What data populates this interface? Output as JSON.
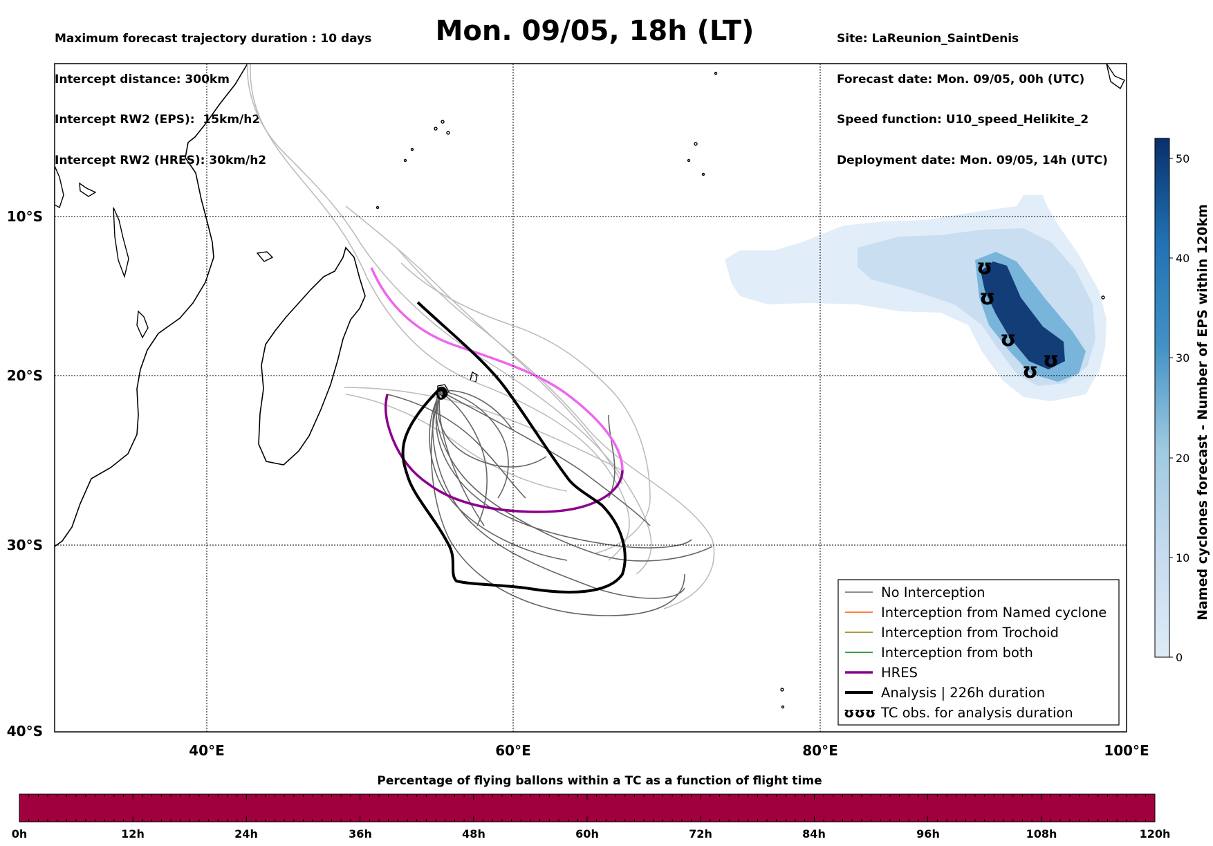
{
  "header": {
    "left_lines": [
      "Maximum forecast trajectory duration : 10 days",
      "Intercept distance: 300km",
      "Intercept RW2 (EPS):  15km/h2",
      "Intercept RW2 (HRES): 30km/h2"
    ],
    "title": "Mon. 09/05, 18h (LT)",
    "right_lines": [
      "Site: LaReunion_SaintDenis",
      "Forecast date: Mon. 09/05, 00h (UTC)",
      "Speed function: U10_speed_Helikite_2",
      "Deployment date: Mon. 09/05, 14h (UTC)"
    ]
  },
  "map": {
    "lon_ticks": [
      "40°E",
      "60°E",
      "80°E",
      "100°E"
    ],
    "lat_ticks": [
      "10°S",
      "20°S",
      "30°S",
      "40°S"
    ],
    "lon_range": [
      30,
      100
    ],
    "lat_range": [
      -40,
      -0.3
    ]
  },
  "colorbar": {
    "title": "Named cyclones forecast - Number of EPS within 120km",
    "ticks": [
      "0",
      "10",
      "20",
      "30",
      "40",
      "50"
    ],
    "range": [
      0,
      52
    ],
    "colors": [
      "#deebf7",
      "#08306b"
    ]
  },
  "legend": {
    "items": [
      {
        "label": "No Interception",
        "color": "#666666",
        "kind": "line-thin"
      },
      {
        "label": "Interception from Named cyclone",
        "color": "#ff5500",
        "kind": "line-thin"
      },
      {
        "label": "Interception from Trochoid",
        "color": "#808000",
        "kind": "line-thin"
      },
      {
        "label": "Interception from both",
        "color": "#008000",
        "kind": "line-thin"
      },
      {
        "label": "HRES",
        "color": "#8b008b",
        "kind": "line-thick"
      },
      {
        "label": "Analysis | 226h duration",
        "color": "#000000",
        "kind": "line-thick"
      },
      {
        "label": "TC obs. for analysis duration",
        "color": "#000000",
        "kind": "symbol",
        "symbol": "ʊʊʊ"
      }
    ]
  },
  "bottom_bar": {
    "title": "Percentage of flying ballons within a TC as a function of flight time",
    "ticks": [
      "0h",
      "12h",
      "24h",
      "36h",
      "48h",
      "60h",
      "72h",
      "84h",
      "96h",
      "108h",
      "120h"
    ],
    "fill_color": "#a1003f"
  },
  "tc_symbol": "ʊ"
}
